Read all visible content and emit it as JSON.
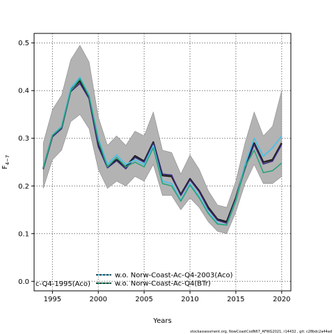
{
  "chart_data": {
    "type": "line",
    "title": "",
    "xlabel": "Years",
    "ylabel_main": "F",
    "ylabel_sub": "4−7",
    "xlim": [
      1993,
      2021
    ],
    "ylim": [
      -0.02,
      0.52
    ],
    "xticks": [
      1995,
      2000,
      2005,
      2010,
      2015,
      2020
    ],
    "yticks": [
      0.0,
      0.1,
      0.2,
      0.3,
      0.4,
      0.5
    ],
    "ytick_labels": [
      "0.0",
      "0.1",
      "0.2",
      "0.3",
      "0.4",
      "0.5"
    ],
    "grid": true,
    "legend_position": "bottom-center",
    "x": [
      1994,
      1995,
      1996,
      1997,
      1998,
      1999,
      2000,
      2001,
      2002,
      2003,
      2004,
      2005,
      2006,
      2007,
      2008,
      2009,
      2010,
      2011,
      2012,
      2013,
      2014,
      2015,
      2016,
      2017,
      2018,
      2019,
      2020
    ],
    "band": {
      "color": "#b3b3b3",
      "upper": [
        0.29,
        0.36,
        0.39,
        0.465,
        0.495,
        0.46,
        0.345,
        0.285,
        0.305,
        0.285,
        0.315,
        0.305,
        0.355,
        0.275,
        0.27,
        0.225,
        0.265,
        0.235,
        0.19,
        0.16,
        0.155,
        0.21,
        0.29,
        0.355,
        0.305,
        0.325,
        0.4
      ],
      "lower": [
        0.195,
        0.255,
        0.275,
        0.335,
        0.35,
        0.32,
        0.235,
        0.195,
        0.21,
        0.2,
        0.22,
        0.21,
        0.245,
        0.18,
        0.18,
        0.15,
        0.175,
        0.155,
        0.125,
        0.105,
        0.1,
        0.145,
        0.205,
        0.245,
        0.205,
        0.205,
        0.22
      ]
    },
    "series": [
      {
        "values": [
          0.237,
          0.305,
          0.322,
          0.402,
          0.42,
          0.385,
          0.285,
          0.24,
          0.255,
          0.24,
          0.263,
          0.252,
          0.292,
          0.222,
          0.22,
          0.182,
          0.215,
          0.19,
          0.155,
          0.13,
          0.125,
          0.175,
          0.24,
          0.29,
          0.25,
          0.255,
          0.29
        ],
        "color": "#1f1f1f",
        "style": "solid",
        "width": 2.4
      },
      {
        "values": [
          0.235,
          0.303,
          0.32,
          0.398,
          0.415,
          0.383,
          0.282,
          0.238,
          0.253,
          0.236,
          0.26,
          0.25,
          0.29,
          0.225,
          0.223,
          0.18,
          0.213,
          0.188,
          0.152,
          0.128,
          0.122,
          0.172,
          0.236,
          0.287,
          0.246,
          0.252,
          0.287
        ],
        "color": "#3b2a7a",
        "style": "solid",
        "width": 1.6
      },
      {
        "values": [
          0.238,
          0.307,
          0.325,
          0.405,
          0.428,
          0.39,
          0.3,
          0.245,
          0.265,
          0.245,
          0.255,
          0.245,
          0.285,
          0.21,
          0.205,
          0.17,
          0.205,
          0.178,
          0.145,
          0.122,
          0.118,
          0.17,
          0.245,
          0.3,
          0.262,
          0.28,
          0.305
        ],
        "color": "#4cc1e6",
        "style": "solid",
        "width": 1.8
      },
      {
        "values": [
          0.237,
          0.306,
          0.323,
          0.4,
          0.425,
          0.388,
          0.295,
          0.24,
          0.26,
          0.24,
          0.25,
          0.24,
          0.28,
          0.205,
          0.2,
          0.168,
          0.202,
          0.175,
          0.142,
          0.12,
          0.118,
          0.168,
          0.24,
          0.275,
          0.228,
          0.232,
          0.248
        ],
        "color": "#2aa37a",
        "style": "solid",
        "width": 1.6
      }
    ],
    "legend": [
      {
        "label": "w.o. Norw-Coast-Ac-Q4-2003(Aco)",
        "color": "#1f1f1f",
        "accent": "#4cc1e6",
        "style": "dashed"
      },
      {
        "label": "w.o. Norw-Coast-Ac-Q4(BTr)",
        "color": "#1f1f1f",
        "accent": "#2aa37a",
        "style": "dashed"
      }
    ],
    "annotation": "c-Q4-1995(Aco)",
    "footnote": "stockassessment.org, NowCoastCodN67_AFWG2021, r14432 , git: c28bdc2a44ad"
  }
}
